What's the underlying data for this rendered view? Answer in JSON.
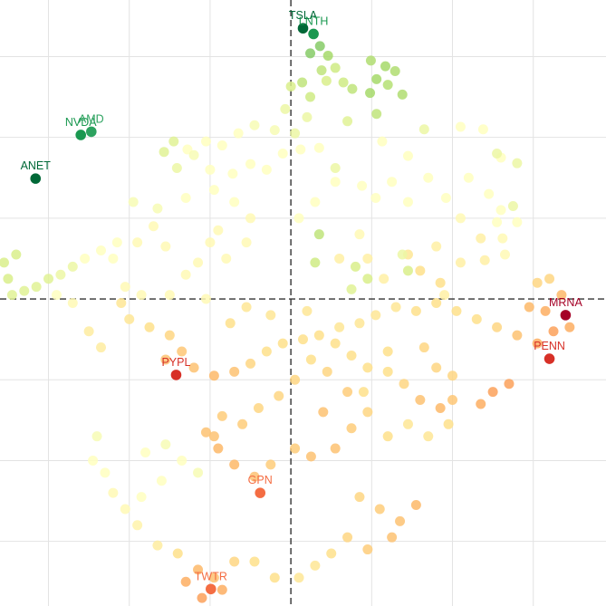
{
  "chart_data": {
    "type": "scatter",
    "title": "",
    "xlabel": "",
    "ylabel": "",
    "xlim": [
      -3.6,
      3.9
    ],
    "ylim": [
      -3.8,
      3.7
    ],
    "grid": true,
    "zero_lines": "dashed",
    "color_scale": [
      "#006837",
      "#1a9850",
      "#66bd63",
      "#a6d96a",
      "#d9ef8b",
      "#ffffbf",
      "#fee08b",
      "#fdae61",
      "#f46d43",
      "#d73027",
      "#a50026"
    ],
    "labeled_points": [
      {
        "label": "TSLA",
        "x": 0.15,
        "y": 3.35,
        "color": "#006837"
      },
      {
        "label": "LNTH",
        "x": 0.28,
        "y": 3.28,
        "color": "#1a9850"
      },
      {
        "label": "NVDA",
        "x": -2.6,
        "y": 2.03,
        "color": "#1a9850"
      },
      {
        "label": "AMD",
        "x": -2.47,
        "y": 2.07,
        "color": "#2ca25f"
      },
      {
        "label": "ANET",
        "x": -3.16,
        "y": 1.49,
        "color": "#006837"
      },
      {
        "label": "MRNA",
        "x": 3.4,
        "y": -0.2,
        "color": "#a50026"
      },
      {
        "label": "PENN",
        "x": 3.2,
        "y": -0.74,
        "color": "#d73027"
      },
      {
        "label": "PYPL",
        "x": -1.42,
        "y": -0.94,
        "color": "#d73027"
      },
      {
        "label": "GPN",
        "x": -0.38,
        "y": -2.4,
        "color": "#f46d43"
      },
      {
        "label": "TWTR",
        "x": -0.99,
        "y": -3.59,
        "color": "#f46d43"
      }
    ],
    "points": [
      [
        0.24,
        3.04,
        0.25
      ],
      [
        0.36,
        3.13,
        0.25
      ],
      [
        0.46,
        3.01,
        0.3
      ],
      [
        0.14,
        2.68,
        0.35
      ],
      [
        0.38,
        2.83,
        0.35
      ],
      [
        0.55,
        2.86,
        0.38
      ],
      [
        0.24,
        2.5,
        0.38
      ],
      [
        0.0,
        2.63,
        0.4
      ],
      [
        0.65,
        2.68,
        0.38
      ],
      [
        0.44,
        2.7,
        0.4
      ],
      [
        0.99,
        2.95,
        0.32
      ],
      [
        1.17,
        2.88,
        0.3
      ],
      [
        1.29,
        2.82,
        0.32
      ],
      [
        1.06,
        2.72,
        0.3
      ],
      [
        1.2,
        2.65,
        0.33
      ],
      [
        1.38,
        2.53,
        0.32
      ],
      [
        0.98,
        2.55,
        0.3
      ],
      [
        0.76,
        2.6,
        0.35
      ],
      [
        1.06,
        2.29,
        0.35
      ],
      [
        0.7,
        2.2,
        0.42
      ],
      [
        -0.07,
        2.35,
        0.45
      ],
      [
        0.2,
        2.25,
        0.45
      ],
      [
        0.05,
        2.05,
        0.45
      ],
      [
        -0.2,
        2.09,
        0.48
      ],
      [
        -0.45,
        2.15,
        0.48
      ],
      [
        -0.65,
        2.05,
        0.5
      ],
      [
        -0.85,
        1.9,
        0.5
      ],
      [
        -1.05,
        1.95,
        0.5
      ],
      [
        -1.28,
        1.85,
        0.5
      ],
      [
        -1.45,
        1.95,
        0.42
      ],
      [
        -1.57,
        1.82,
        0.42
      ],
      [
        -1.41,
        1.62,
        0.45
      ],
      [
        -1.2,
        1.78,
        0.48
      ],
      [
        -1.0,
        1.6,
        0.5
      ],
      [
        -0.72,
        1.55,
        0.5
      ],
      [
        -0.5,
        1.67,
        0.5
      ],
      [
        -0.3,
        1.6,
        0.5
      ],
      [
        -0.1,
        1.8,
        0.5
      ],
      [
        0.12,
        1.85,
        0.5
      ],
      [
        0.35,
        1.87,
        0.5
      ],
      [
        0.55,
        1.62,
        0.45
      ],
      [
        0.88,
        1.4,
        0.5
      ],
      [
        1.05,
        1.25,
        0.5
      ],
      [
        1.25,
        1.45,
        0.5
      ],
      [
        1.45,
        1.2,
        0.5
      ],
      [
        1.7,
        1.5,
        0.5
      ],
      [
        1.92,
        1.25,
        0.5
      ],
      [
        2.2,
        1.5,
        0.5
      ],
      [
        2.45,
        1.3,
        0.5
      ],
      [
        2.6,
        1.1,
        0.5
      ],
      [
        2.75,
        1.15,
        0.45
      ],
      [
        2.55,
        0.95,
        0.5
      ],
      [
        2.1,
        1.0,
        0.52
      ],
      [
        2.35,
        0.75,
        0.55
      ],
      [
        2.62,
        0.75,
        0.52
      ],
      [
        1.8,
        0.65,
        0.55
      ],
      [
        1.45,
        0.55,
        0.58
      ],
      [
        1.6,
        0.35,
        0.6
      ],
      [
        1.85,
        0.2,
        0.6
      ],
      [
        2.1,
        0.45,
        0.55
      ],
      [
        2.4,
        0.48,
        0.55
      ],
      [
        2.65,
        0.55,
        0.52
      ],
      [
        2.8,
        0.95,
        0.5
      ],
      [
        2.6,
        1.75,
        0.5
      ],
      [
        2.8,
        1.68,
        0.45
      ],
      [
        2.1,
        2.13,
        0.5
      ],
      [
        2.38,
        2.1,
        0.5
      ],
      [
        2.55,
        1.8,
        0.45
      ],
      [
        1.65,
        2.1,
        0.45
      ],
      [
        1.13,
        1.95,
        0.5
      ],
      [
        1.45,
        1.77,
        0.5
      ],
      [
        0.55,
        1.45,
        0.5
      ],
      [
        0.3,
        1.2,
        0.5
      ],
      [
        0.1,
        1.0,
        0.5
      ],
      [
        0.85,
        0.8,
        0.52
      ],
      [
        0.6,
        0.5,
        0.55
      ],
      [
        0.95,
        0.5,
        0.55
      ],
      [
        1.15,
        0.25,
        0.55
      ],
      [
        1.38,
        0.55,
        0.45
      ],
      [
        0.3,
        0.45,
        0.38
      ],
      [
        0.8,
        0.4,
        0.4
      ],
      [
        0.95,
        0.25,
        0.4
      ],
      [
        0.75,
        0.12,
        0.42
      ],
      [
        -0.8,
        0.5,
        0.52
      ],
      [
        -1.0,
        0.7,
        0.52
      ],
      [
        -1.15,
        0.45,
        0.52
      ],
      [
        -1.3,
        0.3,
        0.52
      ],
      [
        -1.55,
        0.65,
        0.52
      ],
      [
        -1.7,
        0.9,
        0.52
      ],
      [
        -1.9,
        0.7,
        0.52
      ],
      [
        -1.95,
        1.2,
        0.48
      ],
      [
        -1.65,
        1.12,
        0.48
      ],
      [
        -1.3,
        1.25,
        0.5
      ],
      [
        -0.95,
        1.35,
        0.5
      ],
      [
        -0.7,
        1.2,
        0.5
      ],
      [
        -0.5,
        1.0,
        0.52
      ],
      [
        -0.55,
        0.7,
        0.52
      ],
      [
        -0.9,
        0.85,
        0.52
      ],
      [
        -2.15,
        0.7,
        0.5
      ],
      [
        -2.35,
        0.6,
        0.5
      ],
      [
        -2.55,
        0.5,
        0.5
      ],
      [
        -2.7,
        0.4,
        0.45
      ],
      [
        -2.85,
        0.3,
        0.45
      ],
      [
        -3.0,
        0.25,
        0.42
      ],
      [
        -3.15,
        0.15,
        0.42
      ],
      [
        -3.3,
        0.1,
        0.42
      ],
      [
        -3.45,
        0.05,
        0.42
      ],
      [
        -3.5,
        0.25,
        0.4
      ],
      [
        -3.55,
        0.45,
        0.4
      ],
      [
        -3.4,
        0.55,
        0.4
      ],
      [
        -2.2,
        0.5,
        0.5
      ],
      [
        -2.05,
        0.15,
        0.52
      ],
      [
        -1.85,
        0.05,
        0.52
      ],
      [
        -1.5,
        0.05,
        0.52
      ],
      [
        -1.05,
        0.0,
        0.52
      ],
      [
        -2.1,
        -0.05,
        0.58
      ],
      [
        -2.0,
        -0.25,
        0.58
      ],
      [
        -1.75,
        -0.35,
        0.6
      ],
      [
        -1.5,
        -0.45,
        0.62
      ],
      [
        -1.35,
        -0.65,
        0.65
      ],
      [
        -1.55,
        -0.75,
        0.66
      ],
      [
        -1.2,
        -0.85,
        0.66
      ],
      [
        -0.95,
        -0.95,
        0.68
      ],
      [
        -0.7,
        -0.9,
        0.66
      ],
      [
        -0.5,
        -0.8,
        0.62
      ],
      [
        -0.3,
        -0.65,
        0.6
      ],
      [
        -0.1,
        -0.55,
        0.6
      ],
      [
        0.15,
        -0.5,
        0.6
      ],
      [
        0.35,
        -0.45,
        0.6
      ],
      [
        0.6,
        -0.35,
        0.58
      ],
      [
        0.85,
        -0.3,
        0.58
      ],
      [
        1.05,
        -0.2,
        0.58
      ],
      [
        1.3,
        -0.1,
        0.58
      ],
      [
        1.55,
        -0.15,
        0.6
      ],
      [
        1.8,
        -0.05,
        0.6
      ],
      [
        2.05,
        -0.15,
        0.6
      ],
      [
        2.3,
        -0.25,
        0.6
      ],
      [
        2.55,
        -0.35,
        0.62
      ],
      [
        2.8,
        -0.45,
        0.66
      ],
      [
        3.05,
        -0.55,
        0.7
      ],
      [
        3.25,
        -0.4,
        0.72
      ],
      [
        3.15,
        -0.15,
        0.7
      ],
      [
        2.95,
        -0.1,
        0.68
      ],
      [
        3.05,
        0.2,
        0.62
      ],
      [
        3.2,
        0.25,
        0.62
      ],
      [
        3.35,
        0.05,
        0.68
      ],
      [
        3.45,
        -0.35,
        0.7
      ],
      [
        2.7,
        -1.05,
        0.72
      ],
      [
        2.5,
        -1.15,
        0.72
      ],
      [
        2.35,
        -1.3,
        0.7
      ],
      [
        2.0,
        -1.25,
        0.65
      ],
      [
        1.85,
        -1.35,
        0.68
      ],
      [
        1.6,
        -1.25,
        0.66
      ],
      [
        1.4,
        -1.05,
        0.62
      ],
      [
        1.2,
        -0.9,
        0.6
      ],
      [
        0.95,
        -0.85,
        0.6
      ],
      [
        0.75,
        -0.7,
        0.6
      ],
      [
        0.55,
        -0.55,
        0.6
      ],
      [
        0.25,
        -0.75,
        0.6
      ],
      [
        0.05,
        -1.0,
        0.62
      ],
      [
        -0.15,
        -1.2,
        0.62
      ],
      [
        -0.4,
        -1.35,
        0.62
      ],
      [
        -0.6,
        -1.55,
        0.64
      ],
      [
        -0.85,
        -1.45,
        0.64
      ],
      [
        -1.05,
        -1.65,
        0.66
      ],
      [
        -0.9,
        -1.85,
        0.68
      ],
      [
        -0.7,
        -2.05,
        0.68
      ],
      [
        -0.45,
        -2.2,
        0.66
      ],
      [
        -0.25,
        -2.05,
        0.64
      ],
      [
        0.05,
        -1.85,
        0.64
      ],
      [
        0.25,
        -1.95,
        0.66
      ],
      [
        0.55,
        -1.85,
        0.66
      ],
      [
        0.75,
        -1.6,
        0.64
      ],
      [
        0.95,
        -1.4,
        0.62
      ],
      [
        1.2,
        -1.7,
        0.6
      ],
      [
        1.45,
        -1.55,
        0.58
      ],
      [
        1.7,
        -1.7,
        0.58
      ],
      [
        1.95,
        -1.55,
        0.6
      ],
      [
        0.85,
        -2.45,
        0.62
      ],
      [
        1.1,
        -2.6,
        0.64
      ],
      [
        1.35,
        -2.75,
        0.66
      ],
      [
        1.55,
        -2.55,
        0.68
      ],
      [
        1.25,
        -2.95,
        0.66
      ],
      [
        0.95,
        -3.1,
        0.64
      ],
      [
        0.7,
        -2.95,
        0.62
      ],
      [
        0.5,
        -3.15,
        0.6
      ],
      [
        0.3,
        -3.3,
        0.58
      ],
      [
        0.1,
        -3.45,
        0.58
      ],
      [
        -0.2,
        -3.45,
        0.6
      ],
      [
        -0.45,
        -3.25,
        0.6
      ],
      [
        -0.7,
        -3.25,
        0.62
      ],
      [
        -0.95,
        -3.45,
        0.66
      ],
      [
        -1.15,
        -3.35,
        0.68
      ],
      [
        -1.3,
        -3.5,
        0.7
      ],
      [
        -1.1,
        -3.7,
        0.72
      ],
      [
        -0.85,
        -3.6,
        0.7
      ],
      [
        -1.4,
        -3.15,
        0.6
      ],
      [
        -1.65,
        -3.05,
        0.56
      ],
      [
        -1.9,
        -2.8,
        0.54
      ],
      [
        -2.05,
        -2.6,
        0.52
      ],
      [
        -2.2,
        -2.4,
        0.52
      ],
      [
        -2.3,
        -2.15,
        0.5
      ],
      [
        -2.45,
        -2.0,
        0.5
      ],
      [
        -2.4,
        -1.7,
        0.48
      ],
      [
        -1.8,
        -1.9,
        0.5
      ],
      [
        -1.55,
        -1.8,
        0.48
      ],
      [
        -1.35,
        -2.0,
        0.5
      ],
      [
        -1.6,
        -2.25,
        0.5
      ],
      [
        -1.85,
        -2.45,
        0.5
      ],
      [
        -1.15,
        -2.15,
        0.48
      ],
      [
        -0.95,
        -1.7,
        0.66
      ],
      [
        0.9,
        -1.15,
        0.6
      ],
      [
        1.65,
        -0.6,
        0.62
      ],
      [
        1.8,
        -0.85,
        0.62
      ],
      [
        2.0,
        -0.95,
        0.62
      ],
      [
        1.2,
        -0.65,
        0.6
      ],
      [
        0.2,
        -0.15,
        0.58
      ],
      [
        -0.25,
        -0.2,
        0.58
      ],
      [
        -0.55,
        -0.1,
        0.58
      ],
      [
        -0.75,
        -0.3,
        0.6
      ],
      [
        0.45,
        -0.9,
        0.62
      ],
      [
        0.7,
        -1.15,
        0.64
      ],
      [
        0.4,
        -1.4,
        0.66
      ],
      [
        -2.35,
        -0.6,
        0.56
      ],
      [
        -2.5,
        -0.4,
        0.56
      ],
      [
        -2.9,
        0.05,
        0.5
      ],
      [
        -2.7,
        -0.05,
        0.52
      ],
      [
        1.45,
        0.35,
        0.4
      ],
      [
        0.35,
        0.8,
        0.35
      ],
      [
        1.9,
        0.05,
        0.55
      ]
    ]
  }
}
